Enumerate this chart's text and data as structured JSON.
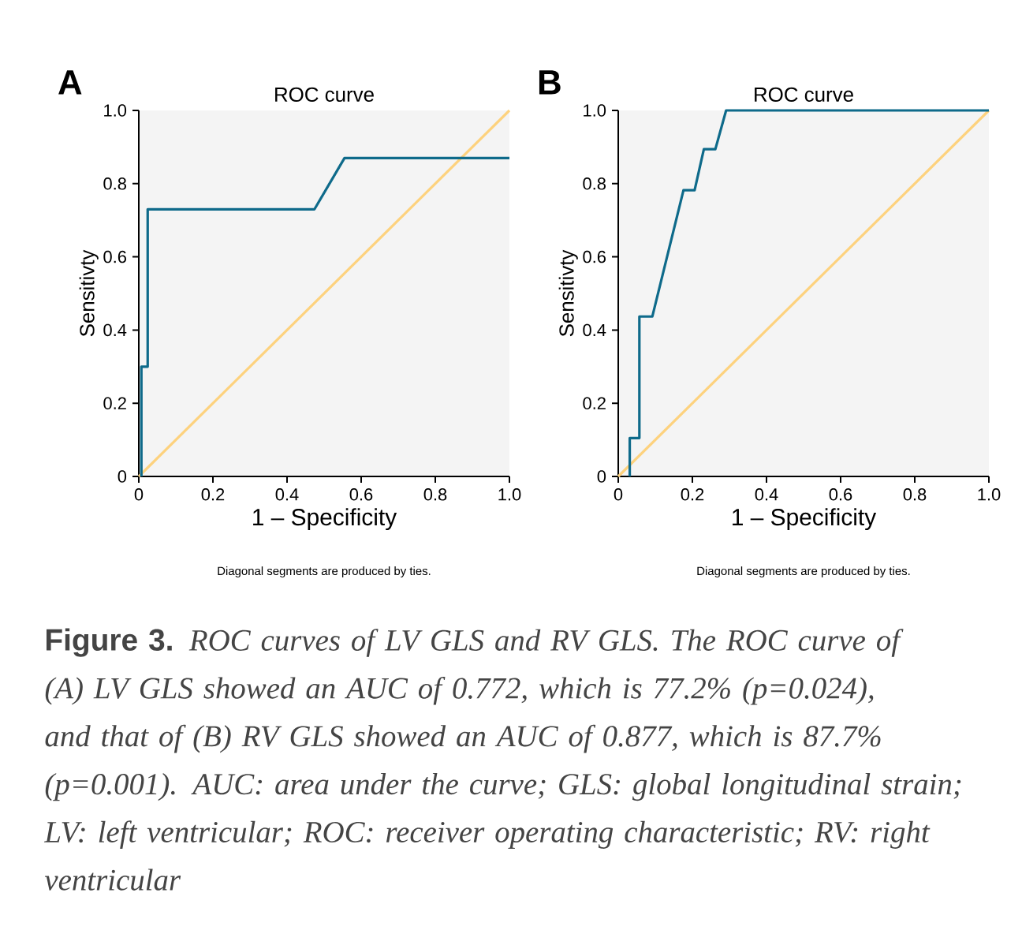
{
  "chart_data": [
    {
      "type": "line",
      "title": "ROC curve",
      "xlabel": "1 – Specificity",
      "ylabel": "Sensitivty",
      "annotations": [
        "A",
        "Diagonal segments are produced by ties."
      ],
      "xlim": [
        0,
        1
      ],
      "ylim": [
        0,
        1
      ],
      "xticks": [
        0,
        0.2,
        0.4,
        0.6,
        0.8,
        {
          "value": 1,
          "label": "1.0"
        }
      ],
      "yticks": [
        0,
        0.2,
        0.4,
        0.6,
        0.8,
        {
          "value": 1,
          "label": "1.0"
        }
      ],
      "series": [
        {
          "color": "#fdd27e",
          "x": [
            0,
            1
          ],
          "values": [
            0,
            1
          ]
        },
        {
          "color": "#0e6a8a",
          "x": [
            0.007,
            0.007,
            0.024,
            0.024,
            0.474,
            0.555,
            1.0
          ],
          "values": [
            0,
            0.3,
            0.3,
            0.73,
            0.73,
            0.87,
            0.87
          ]
        }
      ]
    },
    {
      "type": "line",
      "title": "ROC curve",
      "xlabel": "1 – Specificity",
      "ylabel": "Sensitivty",
      "annotations": [
        "B",
        "Diagonal segments are produced by ties."
      ],
      "xlim": [
        0,
        1
      ],
      "ylim": [
        0,
        1
      ],
      "xticks": [
        0,
        0.2,
        0.4,
        0.6,
        0.8,
        {
          "value": 1,
          "label": "1.0"
        }
      ],
      "yticks": [
        0,
        0.2,
        0.4,
        0.6,
        0.8,
        {
          "value": 1,
          "label": "1.0"
        }
      ],
      "series": [
        {
          "color": "#fdd27e",
          "x": [
            0,
            1
          ],
          "values": [
            0,
            1
          ]
        },
        {
          "color": "#0e6a8a",
          "x": [
            0.031,
            0.031,
            0.057,
            0.057,
            0.092,
            0.176,
            0.206,
            0.231,
            0.262,
            0.291,
            1.0
          ],
          "values": [
            0,
            0.105,
            0.105,
            0.437,
            0.437,
            0.782,
            0.782,
            0.894,
            0.894,
            1.0,
            1.0
          ]
        }
      ]
    },
    {
      "type": "other",
      "annotations": [
        "Figure 3.",
        "ROC curves of LV GLS and RV GLS.  The ROC curve of (A) LV GLS showed an AUC of 0.772, which is 77.2% (p=0.024), and that of (B) RV GLS showed an AUC of 0.877, which is 87.7% (p=0.001). AUC: area under the curve; GLS: global longitudinal strain; LV: left ventricular; ROC: receiver operating characteristic; RV: right ventricular"
      ]
    }
  ]
}
